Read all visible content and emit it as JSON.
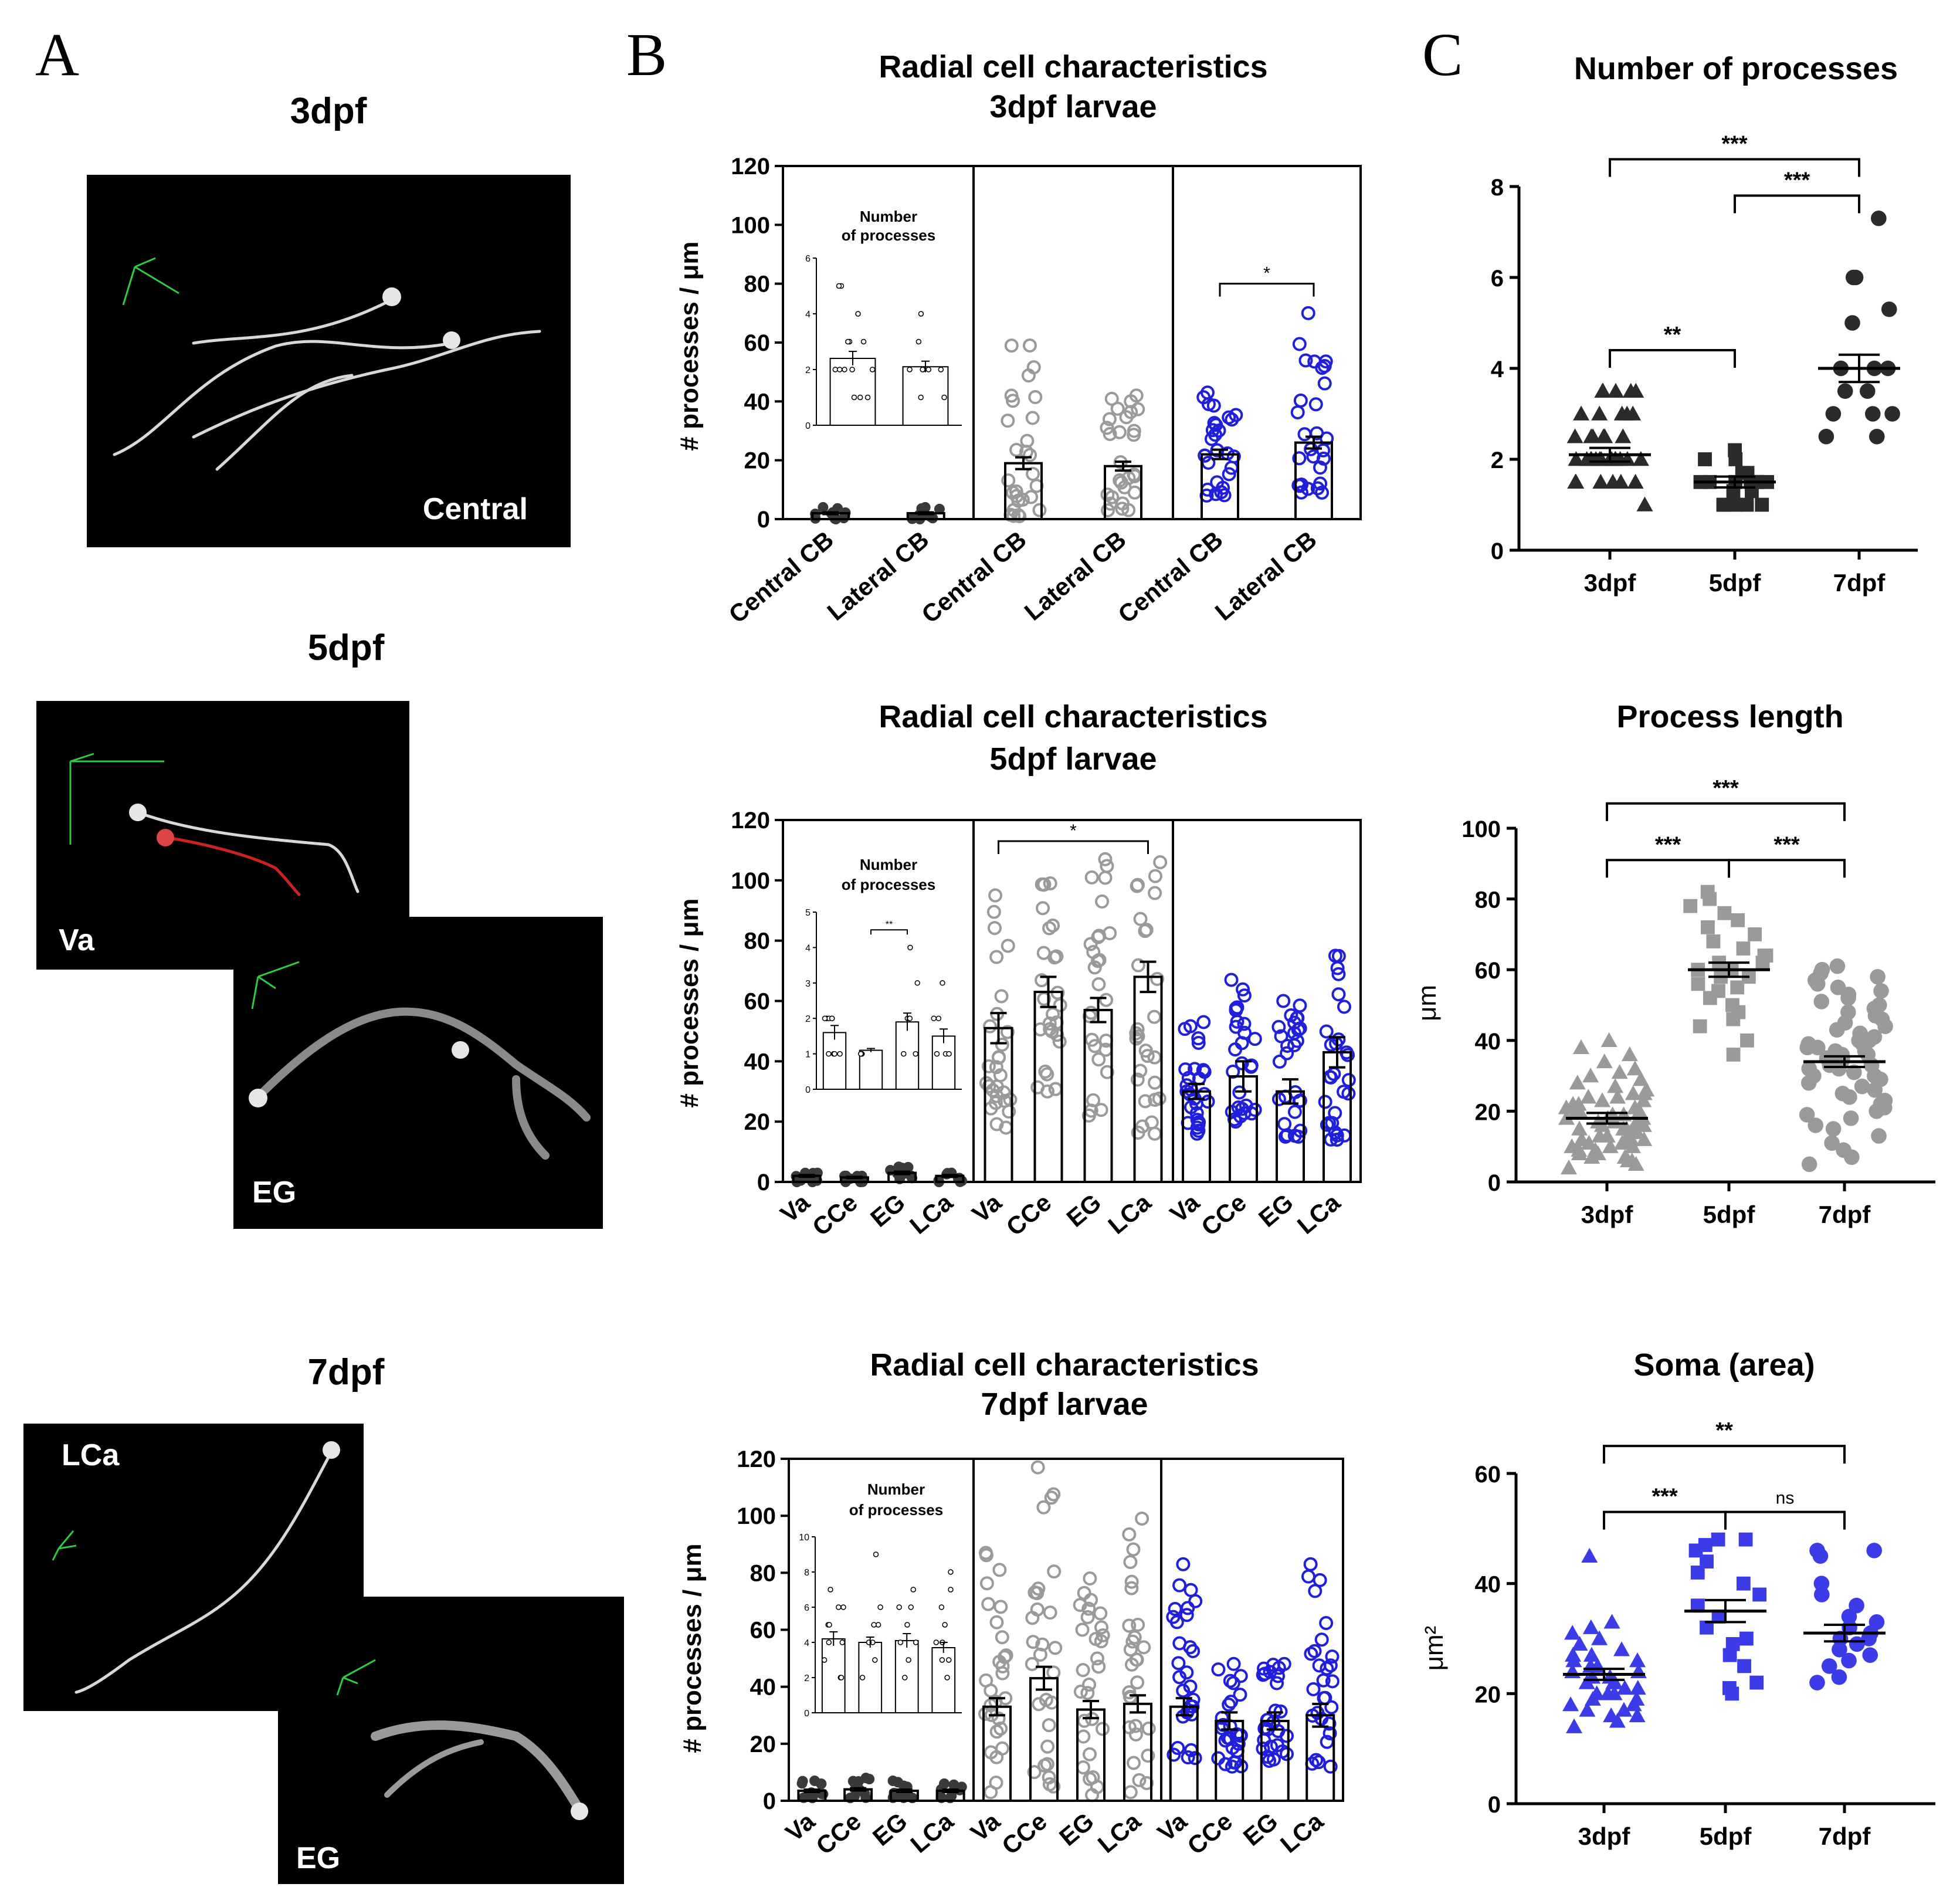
{
  "panel_letters": {
    "a": "A",
    "b": "B",
    "c": "C"
  },
  "images": {
    "stage_3dpf": "3dpf",
    "stage_5dpf": "5dpf",
    "stage_7dpf": "7dpf",
    "central": "Central",
    "va": "Va",
    "eg_5": "EG",
    "lca": "LCa",
    "eg_7": "EG"
  },
  "colors": {
    "grey": "#9a9a9a",
    "dark": "#3a3a3a",
    "blue": "#1f1fdc",
    "blue_fill": "#3b3be8",
    "black": "#000000"
  },
  "chart_data": [
    {
      "id": "b3",
      "type": "bar",
      "title": "Radial cell characteristics",
      "subtitle": "3dpf larvae",
      "ylabel": "# processes / μm",
      "ylim": [
        0,
        120
      ],
      "yticks": [
        "0",
        "20",
        "40",
        "60",
        "80",
        "100",
        "120"
      ],
      "groups": [
        {
          "color": "dark",
          "categories": [
            "Central CB",
            "Lateral CB"
          ],
          "values": [
            2,
            2
          ],
          "sem": [
            0.3,
            0.3
          ],
          "spread": [
            [
              0,
              4
            ],
            [
              0,
              4
            ]
          ]
        },
        {
          "color": "grey",
          "categories": [
            "Central CB",
            "Lateral CB"
          ],
          "values": [
            19,
            18
          ],
          "sem": [
            2,
            1.5
          ],
          "spread": [
            [
              1,
              59
            ],
            [
              3,
              42
            ]
          ]
        },
        {
          "color": "blue",
          "categories": [
            "Central CB",
            "Lateral CB"
          ],
          "values": [
            22,
            26
          ],
          "sem": [
            1.6,
            2
          ],
          "spread": [
            [
              8,
              43
            ],
            [
              9,
              70
            ]
          ]
        }
      ],
      "brackets": [
        {
          "label": "*",
          "group": 2,
          "from": 0,
          "to": 1,
          "y": 80
        }
      ],
      "inset": {
        "title_line1": "Number",
        "title_line2": "of processes",
        "ylim": [
          0,
          6
        ],
        "yticks": [
          "0",
          "2",
          "4",
          "6"
        ],
        "categories": [
          "Central CB",
          "Lateral CB"
        ],
        "values": [
          2.4,
          2.1
        ],
        "sem": [
          0.25,
          0.2
        ],
        "points": [
          [
            1,
            1,
            1,
            2,
            2,
            2,
            2,
            2,
            3,
            3,
            3,
            4,
            5,
            5
          ],
          [
            1,
            1,
            2,
            2,
            2,
            2,
            2,
            3,
            4
          ]
        ]
      }
    },
    {
      "id": "b5",
      "type": "bar",
      "title": "Radial cell characteristics",
      "subtitle": "5dpf larvae",
      "ylabel": "# processes / μm",
      "ylim": [
        0,
        120
      ],
      "yticks": [
        "0",
        "20",
        "40",
        "60",
        "80",
        "100",
        "120"
      ],
      "groups": [
        {
          "color": "dark",
          "categories": [
            "Va",
            "CCe",
            "EG",
            "LCa"
          ],
          "values": [
            2,
            1.5,
            3,
            2
          ],
          "sem": [
            0.3,
            0.2,
            0.4,
            0.3
          ],
          "spread": [
            [
              0,
              3
            ],
            [
              0,
              2
            ],
            [
              1,
              5
            ],
            [
              0,
              3
            ]
          ]
        },
        {
          "color": "grey",
          "categories": [
            "Va",
            "CCe",
            "EG",
            "LCa"
          ],
          "values": [
            51,
            63,
            57,
            68
          ],
          "sem": [
            5,
            5,
            4,
            5
          ],
          "spread": [
            [
              18,
              95
            ],
            [
              30,
              99
            ],
            [
              22,
              107
            ],
            [
              16,
              106
            ]
          ]
        },
        {
          "color": "blue",
          "categories": [
            "Va",
            "CCe",
            "EG",
            "LCa"
          ],
          "values": [
            30,
            35,
            30,
            43
          ],
          "sem": [
            2.5,
            5,
            4,
            5
          ],
          "spread": [
            [
              16,
              53
            ],
            [
              20,
              67
            ],
            [
              15,
              60
            ],
            [
              14,
              75
            ]
          ]
        }
      ],
      "brackets": [
        {
          "label": "*",
          "group": 1,
          "from": 0,
          "to": 3,
          "y": 113
        }
      ],
      "inset": {
        "title_line1": "Number",
        "title_line2": "of processes",
        "ylim": [
          0,
          5
        ],
        "yticks": [
          "0",
          "1",
          "2",
          "3",
          "4",
          "5"
        ],
        "categories": [
          "Va",
          "CCe",
          "EG",
          "LCa"
        ],
        "values": [
          1.6,
          1.1,
          1.9,
          1.5
        ],
        "sem": [
          0.2,
          0.05,
          0.25,
          0.2
        ],
        "points": [
          [
            1,
            1,
            1,
            1,
            2,
            2,
            2,
            2,
            2
          ],
          [
            1,
            1,
            1,
            1,
            1
          ],
          [
            1,
            1,
            2,
            2,
            2,
            3,
            4
          ],
          [
            1,
            1,
            1,
            2,
            2,
            3
          ]
        ],
        "brackets": [
          {
            "label": "**",
            "from": 1,
            "to": 2,
            "y": 4.5
          }
        ]
      }
    },
    {
      "id": "b7",
      "type": "bar",
      "title": "Radial cell characteristics",
      "subtitle": "7dpf larvae",
      "ylabel": "# processes / μm",
      "ylim": [
        0,
        120
      ],
      "yticks": [
        "0",
        "20",
        "40",
        "60",
        "80",
        "100",
        "120"
      ],
      "groups": [
        {
          "color": "dark",
          "categories": [
            "Va",
            "CCe",
            "EG",
            "LCa"
          ],
          "values": [
            3.5,
            4,
            3.5,
            3.5
          ],
          "sem": [
            0.4,
            0.4,
            0.4,
            0.4
          ],
          "spread": [
            [
              1,
              7
            ],
            [
              1,
              8
            ],
            [
              1,
              7
            ],
            [
              1,
              6
            ]
          ]
        },
        {
          "color": "grey",
          "categories": [
            "Va",
            "CCe",
            "EG",
            "LCa"
          ],
          "values": [
            33,
            43,
            32,
            34
          ],
          "sem": [
            3,
            4,
            3,
            3
          ],
          "spread": [
            [
              3,
              87
            ],
            [
              5,
              117
            ],
            [
              2,
              78
            ],
            [
              3,
              99
            ]
          ]
        },
        {
          "color": "blue",
          "categories": [
            "Va",
            "CCe",
            "EG",
            "LCa"
          ],
          "values": [
            33,
            28,
            28,
            30
          ],
          "sem": [
            3,
            3,
            3,
            4
          ],
          "spread": [
            [
              15,
              83
            ],
            [
              12,
              48
            ],
            [
              14,
              48
            ],
            [
              12,
              83
            ]
          ]
        }
      ],
      "inset": {
        "title_line1": "Number",
        "title_line2": "of processes",
        "ylim": [
          0,
          10
        ],
        "yticks": [
          "0",
          "2",
          "4",
          "6",
          "8",
          "10"
        ],
        "categories": [
          "Va",
          "CCe",
          "EG",
          "LCa"
        ],
        "values": [
          4.2,
          4,
          4.1,
          3.7
        ],
        "sem": [
          0.4,
          0.3,
          0.4,
          0.3
        ],
        "points": [
          [
            2,
            2,
            3,
            4,
            4,
            5,
            5,
            6,
            6,
            7
          ],
          [
            2,
            3,
            4,
            4,
            5,
            5,
            6,
            9
          ],
          [
            2,
            3,
            4,
            4,
            5,
            6,
            6,
            7
          ],
          [
            2,
            3,
            3,
            4,
            4,
            5,
            6,
            7,
            8
          ]
        ]
      }
    },
    {
      "id": "c1",
      "type": "scatter",
      "title": "Number of processes",
      "ylabel": "",
      "ylim": [
        0,
        8
      ],
      "yticks": [
        "0",
        "2",
        "4",
        "6",
        "8"
      ],
      "categories": [
        "3dpf",
        "5dpf",
        "7dpf"
      ],
      "markers": [
        "triangle",
        "square",
        "circle"
      ],
      "color": "black",
      "means": [
        2.1,
        1.5,
        4.0
      ],
      "sem": [
        0.15,
        0.12,
        0.3
      ],
      "points": [
        [
          1,
          1.5,
          1.5,
          1.5,
          1.5,
          1.5,
          1.5,
          2,
          2,
          2,
          2,
          2,
          2,
          2,
          2,
          2,
          2,
          2,
          2,
          2,
          2,
          2.5,
          2.5,
          2.5,
          2.5,
          2.5,
          2.5,
          3,
          3,
          3,
          3,
          3,
          3.5,
          3.5,
          3.5,
          3.5,
          3.5
        ],
        [
          1,
          1,
          1,
          1,
          1,
          1.3,
          1.3,
          1.5,
          1.5,
          1.5,
          1.5,
          1.5,
          1.5,
          1.5,
          1.7,
          1.7,
          2,
          2,
          2.2
        ],
        [
          2.5,
          2.5,
          3,
          3,
          3,
          3.5,
          3.5,
          4,
          4,
          4,
          5,
          5.3,
          6,
          6,
          7.3
        ]
      ],
      "brackets": [
        {
          "label": "**",
          "from": 0,
          "to": 1,
          "y": 4.4
        },
        {
          "label": "***",
          "from": 1,
          "to": 2,
          "y": 7.8
        },
        {
          "label": "***",
          "from": 0,
          "to": 2,
          "y": 8.6
        }
      ]
    },
    {
      "id": "c2",
      "type": "scatter",
      "title": "Process length",
      "ylabel": "μm",
      "ylim": [
        0,
        100
      ],
      "yticks": [
        "0",
        "20",
        "40",
        "60",
        "80",
        "100"
      ],
      "categories": [
        "3dpf",
        "5dpf",
        "7dpf"
      ],
      "markers": [
        "triangle",
        "square",
        "circle"
      ],
      "color": "grey",
      "means": [
        18,
        60,
        34
      ],
      "sem": [
        1.5,
        2,
        1.5
      ],
      "points": [
        [
          4,
          5,
          6,
          6,
          7,
          7,
          8,
          8,
          9,
          9,
          10,
          10,
          10,
          11,
          11,
          12,
          12,
          12,
          13,
          13,
          13,
          14,
          14,
          14,
          15,
          15,
          15,
          16,
          16,
          16,
          17,
          17,
          17,
          18,
          18,
          18,
          19,
          19,
          20,
          20,
          20,
          21,
          21,
          22,
          22,
          23,
          23,
          24,
          24,
          25,
          25,
          26,
          27,
          28,
          29,
          30,
          31,
          32,
          34,
          36,
          38,
          40
        ],
        [
          36,
          40,
          44,
          46,
          48,
          50,
          52,
          54,
          55,
          56,
          58,
          58,
          60,
          60,
          62,
          62,
          64,
          64,
          66,
          68,
          70,
          72,
          74,
          76,
          78,
          80,
          82
        ],
        [
          5,
          7,
          9,
          11,
          13,
          15,
          16,
          18,
          19,
          20,
          21,
          22,
          23,
          24,
          25,
          26,
          27,
          28,
          29,
          30,
          30,
          31,
          32,
          32,
          33,
          33,
          34,
          34,
          35,
          35,
          36,
          36,
          37,
          37,
          38,
          38,
          39,
          39,
          40,
          40,
          41,
          42,
          43,
          44,
          45,
          46,
          47,
          48,
          49,
          50,
          51,
          52,
          53,
          54,
          55,
          56,
          57,
          58,
          59,
          60,
          61
        ]
      ],
      "brackets": [
        {
          "label": "***",
          "from": 0,
          "to": 1,
          "y": 91
        },
        {
          "label": "***",
          "from": 1,
          "to": 2,
          "y": 91
        },
        {
          "label": "***",
          "from": 0,
          "to": 2,
          "y": 107
        }
      ]
    },
    {
      "id": "c3",
      "type": "scatter",
      "title": "Soma (area)",
      "ylabel": "μm²",
      "ylim": [
        0,
        60
      ],
      "yticks": [
        "0",
        "20",
        "40",
        "60"
      ],
      "categories": [
        "3dpf",
        "5dpf",
        "7dpf"
      ],
      "markers": [
        "triangle",
        "square",
        "circle"
      ],
      "color": "blue_fill",
      "means": [
        23.5,
        35,
        31
      ],
      "sem": [
        1,
        2,
        1.5
      ],
      "points": [
        [
          14,
          15,
          16,
          16,
          17,
          17,
          18,
          18,
          19,
          19,
          20,
          20,
          20,
          21,
          21,
          22,
          22,
          22,
          23,
          23,
          24,
          24,
          25,
          25,
          26,
          26,
          27,
          27,
          28,
          29,
          30,
          31,
          32,
          33,
          45
        ],
        [
          20,
          21,
          22,
          25,
          27,
          29,
          30,
          32,
          34,
          36,
          38,
          40,
          42,
          44,
          46,
          47,
          48,
          48
        ],
        [
          22,
          23,
          25,
          26,
          27,
          28,
          29,
          30,
          30,
          31,
          32,
          33,
          34,
          36,
          38,
          40,
          45,
          46,
          46
        ]
      ],
      "brackets": [
        {
          "label": "***",
          "from": 0,
          "to": 1,
          "y": 53
        },
        {
          "label": "ns",
          "from": 1,
          "to": 2,
          "y": 53
        },
        {
          "label": "**",
          "from": 0,
          "to": 2,
          "y": 65
        }
      ]
    }
  ]
}
